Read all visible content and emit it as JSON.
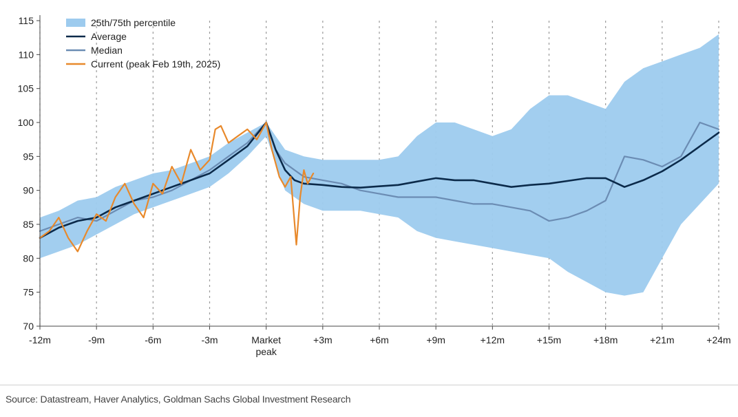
{
  "chart_data": {
    "type": "line",
    "title": "",
    "xlabel": "",
    "ylabel": "",
    "x_ticks": [
      "-12m",
      "-9m",
      "-6m",
      "-3m",
      "Market peak",
      "+3m",
      "+6m",
      "+9m",
      "+12m",
      "+15m",
      "+18m",
      "+21m",
      "+24m"
    ],
    "x_tick_values": [
      -12,
      -9,
      -6,
      -3,
      0,
      3,
      6,
      9,
      12,
      15,
      18,
      21,
      24
    ],
    "xlim": [
      -12,
      24
    ],
    "ylim": [
      70,
      115
    ],
    "y_ticks": [
      70,
      75,
      80,
      85,
      90,
      95,
      100,
      105,
      110,
      115
    ],
    "grid": "vertical dashed at x ticks",
    "legend_position": "top-left",
    "series": [
      {
        "name": "25th/75th percentile",
        "kind": "band",
        "color": "#9dcbee",
        "x": [
          -12,
          -11,
          -10,
          -9,
          -8,
          -7,
          -6,
          -5,
          -4,
          -3,
          -2,
          -1,
          0,
          1,
          2,
          3,
          4,
          5,
          6,
          7,
          8,
          9,
          10,
          11,
          12,
          13,
          14,
          15,
          16,
          17,
          18,
          19,
          20,
          21,
          22,
          23,
          24
        ],
        "low": [
          80,
          81,
          82,
          83.5,
          85,
          86.5,
          87.5,
          88.5,
          89.5,
          90.5,
          92.5,
          95,
          98,
          90,
          88,
          87,
          87,
          87,
          86.5,
          86,
          84,
          83,
          82.5,
          82,
          81.5,
          81,
          80.5,
          80,
          78,
          76.5,
          75,
          74.5,
          75,
          80,
          85,
          88,
          91
        ],
        "high": [
          86,
          87,
          88.5,
          89,
          90.5,
          91.5,
          92.5,
          93,
          94,
          95,
          97,
          98.5,
          100,
          96,
          95,
          94.5,
          94.5,
          94.5,
          94.5,
          95,
          98,
          100,
          100,
          99,
          98,
          99,
          102,
          104,
          104,
          103,
          102,
          106,
          108,
          109,
          110,
          111,
          113
        ]
      },
      {
        "name": "Average",
        "kind": "line",
        "color": "#0b2a4a",
        "x": [
          -12,
          -11,
          -10,
          -9,
          -8,
          -7,
          -6,
          -5,
          -4,
          -3,
          -2,
          -1,
          0,
          0.5,
          1,
          1.5,
          2,
          3,
          4,
          5,
          6,
          7,
          8,
          9,
          10,
          11,
          12,
          13,
          14,
          15,
          16,
          17,
          18,
          19,
          20,
          21,
          22,
          23,
          24
        ],
        "y": [
          83,
          84.5,
          85.5,
          86,
          87.5,
          88.5,
          89.5,
          90.5,
          91.5,
          92.5,
          94.5,
          96.5,
          100,
          96,
          93,
          91.5,
          91,
          90.8,
          90.5,
          90.4,
          90.6,
          90.8,
          91.3,
          91.8,
          91.5,
          91.5,
          91,
          90.5,
          90.8,
          91,
          91.4,
          91.8,
          91.8,
          90.5,
          91.5,
          92.8,
          94.5,
          96.5,
          98.5
        ]
      },
      {
        "name": "Median",
        "kind": "line",
        "color": "#6b8cb3",
        "x": [
          -12,
          -11,
          -10,
          -9,
          -8,
          -7,
          -6,
          -5,
          -4,
          -3,
          -2,
          -1,
          0,
          0.5,
          1,
          1.5,
          2,
          3,
          4,
          5,
          6,
          7,
          8,
          9,
          10,
          11,
          12,
          13,
          14,
          15,
          16,
          17,
          18,
          19,
          20,
          21,
          22,
          23,
          24
        ],
        "y": [
          84,
          85,
          86,
          85.5,
          87,
          88.5,
          89,
          90,
          91.5,
          93,
          95,
          97,
          100,
          96,
          94,
          93,
          92,
          91.5,
          91,
          90,
          89.5,
          89,
          89,
          89,
          88.5,
          88,
          88,
          87.5,
          87,
          85.5,
          86,
          87,
          88.5,
          95,
          94.5,
          93.5,
          95,
          100,
          99
        ]
      },
      {
        "name": "Current (peak Feb 19th, 2025)",
        "kind": "line",
        "color": "#e8892b",
        "x": [
          -12,
          -11.5,
          -11,
          -10.5,
          -10,
          -9.5,
          -9,
          -8.5,
          -8,
          -7.5,
          -7,
          -6.5,
          -6,
          -5.5,
          -5,
          -4.5,
          -4,
          -3.5,
          -3,
          -2.7,
          -2.4,
          -2,
          -1.5,
          -1,
          -0.5,
          0,
          0.3,
          0.7,
          1,
          1.3,
          1.6,
          1.8,
          2,
          2.2,
          2.5
        ],
        "y": [
          83,
          84,
          86,
          83,
          81,
          84,
          86.5,
          85.5,
          89,
          91,
          88,
          86,
          91,
          89.5,
          93.5,
          91,
          96,
          93,
          94.5,
          99,
          99.5,
          97,
          98,
          99,
          97.5,
          100,
          96,
          92,
          90.5,
          92,
          82,
          89,
          93,
          91,
          92.5
        ]
      }
    ]
  },
  "legend": {
    "items": [
      {
        "label": "25th/75th percentile",
        "color": "#9dcbee",
        "kind": "band"
      },
      {
        "label": "Average",
        "color": "#0b2a4a",
        "kind": "line"
      },
      {
        "label": "Median",
        "color": "#6b8cb3",
        "kind": "line"
      },
      {
        "label": "Current (peak Feb 19th, 2025)",
        "color": "#e8892b",
        "kind": "line"
      }
    ]
  },
  "footer": {
    "source": "Source: Datastream, Haver Analytics, Goldman Sachs Global Investment Research"
  }
}
